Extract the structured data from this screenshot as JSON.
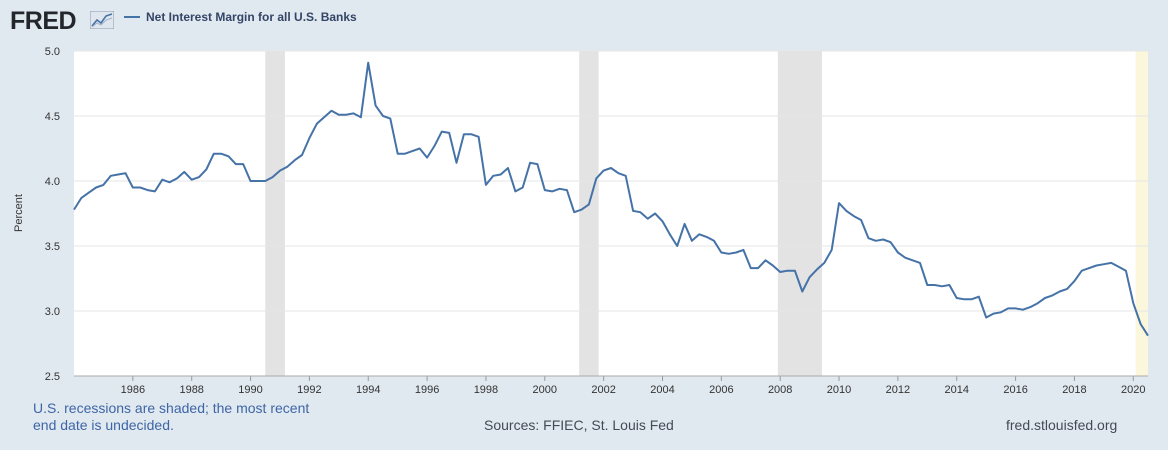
{
  "header": {
    "logo_text": "FRED",
    "logo_icon": "sparkline-chart-icon"
  },
  "footer": {
    "recession_note": "U.S. recessions are shaded; the most recent end date is undecided.",
    "sources": "Sources: FFIEC, St. Louis Fed",
    "site": "fred.stlouisfed.org"
  },
  "colors": {
    "background": "#e1e9f0",
    "plot_background": "#ffffff",
    "series_line": "#4572a7",
    "recession_shade": "#e3e3e3",
    "undecided_shade": "#faf7dc",
    "gridline": "#e6e6e6"
  },
  "chart_data": {
    "type": "line",
    "title": "",
    "xlabel": "",
    "ylabel": "Percent",
    "ylim": [
      2.5,
      5.0
    ],
    "yticks": [
      "2.5",
      "3.0",
      "3.5",
      "4.0",
      "4.5",
      "5.0"
    ],
    "xlim": [
      1984.0,
      2020.5
    ],
    "xticks": [
      "1986",
      "1988",
      "1990",
      "1992",
      "1994",
      "1996",
      "1998",
      "2000",
      "2002",
      "2004",
      "2006",
      "2008",
      "2010",
      "2012",
      "2014",
      "2016",
      "2018",
      "2020"
    ],
    "grid": true,
    "legend_position": "top-left",
    "recessions": [
      [
        1990.5,
        1991.17
      ],
      [
        2001.17,
        2001.83
      ],
      [
        2007.92,
        2009.42
      ]
    ],
    "undecided_recession": [
      2020.08,
      2020.5
    ],
    "series": [
      {
        "name": "Net Interest Margin for all U.S. Banks",
        "x": [
          1984.0,
          1984.25,
          1984.5,
          1984.75,
          1985.0,
          1985.25,
          1985.5,
          1985.75,
          1986.0,
          1986.25,
          1986.5,
          1986.75,
          1987.0,
          1987.25,
          1987.5,
          1987.75,
          1988.0,
          1988.25,
          1988.5,
          1988.75,
          1989.0,
          1989.25,
          1989.5,
          1989.75,
          1990.0,
          1990.25,
          1990.5,
          1990.75,
          1991.0,
          1991.25,
          1991.5,
          1991.75,
          1992.0,
          1992.25,
          1992.5,
          1992.75,
          1993.0,
          1993.25,
          1993.5,
          1993.75,
          1994.0,
          1994.25,
          1994.5,
          1994.75,
          1995.0,
          1995.25,
          1995.5,
          1995.75,
          1996.0,
          1996.25,
          1996.5,
          1996.75,
          1997.0,
          1997.25,
          1997.5,
          1997.75,
          1998.0,
          1998.25,
          1998.5,
          1998.75,
          1999.0,
          1999.25,
          1999.5,
          1999.75,
          2000.0,
          2000.25,
          2000.5,
          2000.75,
          2001.0,
          2001.25,
          2001.5,
          2001.75,
          2002.0,
          2002.25,
          2002.5,
          2002.75,
          2003.0,
          2003.25,
          2003.5,
          2003.75,
          2004.0,
          2004.25,
          2004.5,
          2004.75,
          2005.0,
          2005.25,
          2005.5,
          2005.75,
          2006.0,
          2006.25,
          2006.5,
          2006.75,
          2007.0,
          2007.25,
          2007.5,
          2007.75,
          2008.0,
          2008.25,
          2008.5,
          2008.75,
          2009.0,
          2009.25,
          2009.5,
          2009.75,
          2010.0,
          2010.25,
          2010.5,
          2010.75,
          2011.0,
          2011.25,
          2011.5,
          2011.75,
          2012.0,
          2012.25,
          2012.5,
          2012.75,
          2013.0,
          2013.25,
          2013.5,
          2013.75,
          2014.0,
          2014.25,
          2014.5,
          2014.75,
          2015.0,
          2015.25,
          2015.5,
          2015.75,
          2016.0,
          2016.25,
          2016.5,
          2016.75,
          2017.0,
          2017.25,
          2017.5,
          2017.75,
          2018.0,
          2018.25,
          2018.5,
          2018.75,
          2019.0,
          2019.25,
          2019.5,
          2019.75,
          2020.0,
          2020.25,
          2020.5
        ],
        "y": [
          3.78,
          3.87,
          3.91,
          3.95,
          3.97,
          4.04,
          4.05,
          4.06,
          3.95,
          3.95,
          3.93,
          3.92,
          4.01,
          3.99,
          4.02,
          4.07,
          4.01,
          4.03,
          4.09,
          4.21,
          4.21,
          4.19,
          4.13,
          4.13,
          4.0,
          4.0,
          4.0,
          4.03,
          4.08,
          4.11,
          4.16,
          4.2,
          4.33,
          4.44,
          4.49,
          4.54,
          4.51,
          4.51,
          4.52,
          4.49,
          4.91,
          4.58,
          4.5,
          4.48,
          4.21,
          4.21,
          4.23,
          4.25,
          4.18,
          4.27,
          4.38,
          4.37,
          4.14,
          4.36,
          4.36,
          4.34,
          3.97,
          4.04,
          4.05,
          4.1,
          3.92,
          3.95,
          4.14,
          4.13,
          3.93,
          3.92,
          3.94,
          3.93,
          3.76,
          3.78,
          3.82,
          4.02,
          4.08,
          4.1,
          4.06,
          4.04,
          3.77,
          3.76,
          3.71,
          3.75,
          3.69,
          3.59,
          3.5,
          3.67,
          3.54,
          3.59,
          3.57,
          3.54,
          3.45,
          3.44,
          3.45,
          3.47,
          3.33,
          3.33,
          3.39,
          3.35,
          3.3,
          3.31,
          3.31,
          3.15,
          3.26,
          3.32,
          3.37,
          3.47,
          3.83,
          3.77,
          3.73,
          3.7,
          3.56,
          3.54,
          3.55,
          3.53,
          3.45,
          3.41,
          3.39,
          3.37,
          3.2,
          3.2,
          3.19,
          3.2,
          3.1,
          3.09,
          3.09,
          3.11,
          2.95,
          2.98,
          2.99,
          3.02,
          3.02,
          3.01,
          3.03,
          3.06,
          3.1,
          3.12,
          3.15,
          3.17,
          3.23,
          3.31,
          3.33,
          3.35,
          3.36,
          3.37,
          3.34,
          3.31,
          3.06,
          2.9,
          2.81
        ]
      }
    ]
  }
}
